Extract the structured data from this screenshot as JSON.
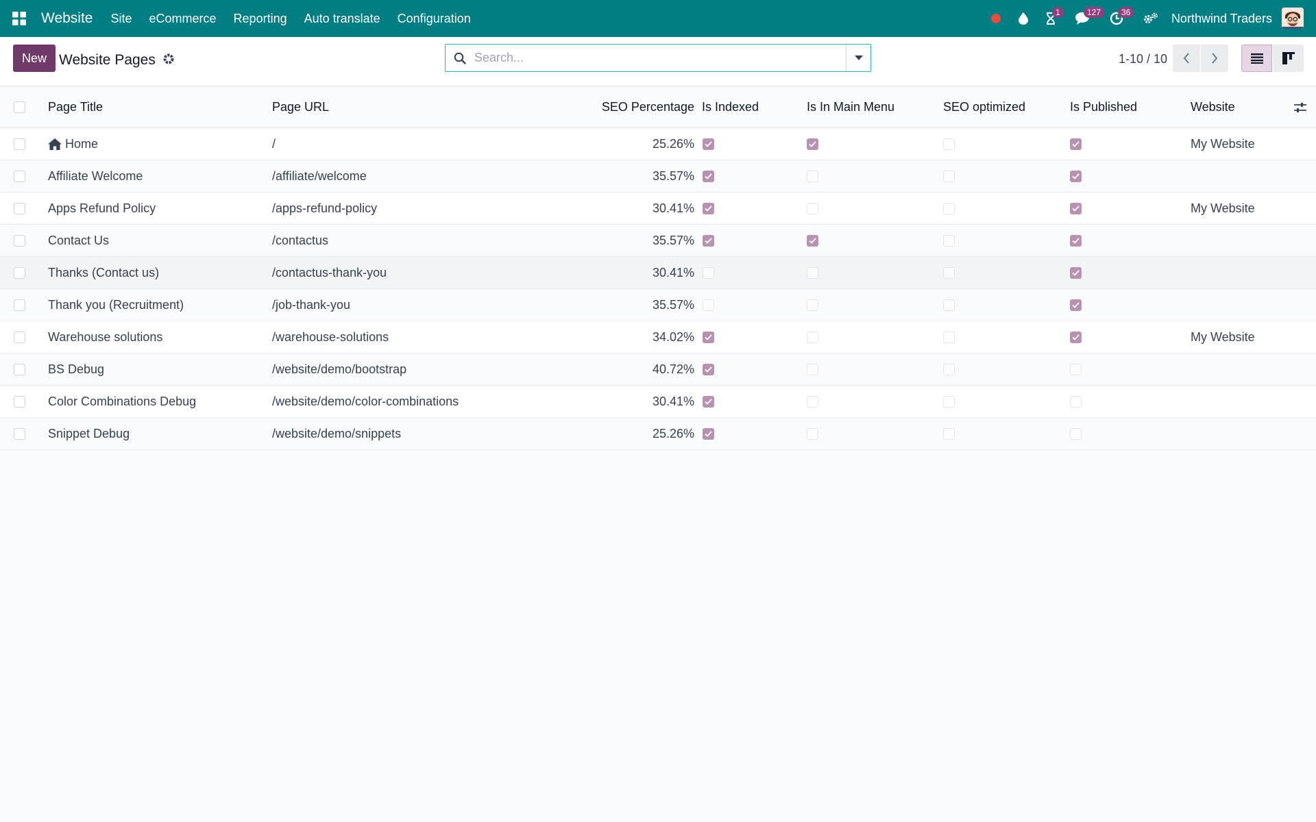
{
  "navbar": {
    "app_name": "Website",
    "menu": [
      "Site",
      "eCommerce",
      "Reporting",
      "Auto translate",
      "Configuration"
    ],
    "badges": {
      "activities": "1",
      "messages": "127",
      "timer": "36"
    },
    "company": "Northwind Traders",
    "colors": {
      "bar": "#017e84",
      "badge": "#8e3f7c",
      "record": "#e74c3c"
    }
  },
  "control": {
    "new_label": "New",
    "title": "Website Pages",
    "search_placeholder": "Search...",
    "pager": "1-10 / 10"
  },
  "table": {
    "headers": {
      "title": "Page Title",
      "url": "Page URL",
      "seo": "SEO Percentage",
      "indexed": "Is Indexed",
      "menu": "Is In Main Menu",
      "optimized": "SEO optimized",
      "published": "Is Published",
      "website": "Website"
    },
    "rows": [
      {
        "title": "Home",
        "url": "/",
        "seo": "25.26%",
        "indexed": true,
        "menu": true,
        "optimized": false,
        "published": true,
        "website": "My Website",
        "home": true
      },
      {
        "title": "Affiliate Welcome",
        "url": "/affiliate/welcome",
        "seo": "35.57%",
        "indexed": true,
        "menu": false,
        "optimized": false,
        "published": true,
        "website": ""
      },
      {
        "title": "Apps Refund Policy",
        "url": "/apps-refund-policy",
        "seo": "30.41%",
        "indexed": true,
        "menu": false,
        "optimized": false,
        "published": true,
        "website": "My Website"
      },
      {
        "title": "Contact Us",
        "url": "/contactus",
        "seo": "35.57%",
        "indexed": true,
        "menu": true,
        "optimized": false,
        "published": true,
        "website": ""
      },
      {
        "title": "Thanks (Contact us)",
        "url": "/contactus-thank-you",
        "seo": "30.41%",
        "indexed": false,
        "menu": false,
        "optimized": false,
        "published": true,
        "website": ""
      },
      {
        "title": "Thank you (Recruitment)",
        "url": "/job-thank-you",
        "seo": "35.57%",
        "indexed": false,
        "menu": false,
        "optimized": false,
        "published": true,
        "website": ""
      },
      {
        "title": "Warehouse solutions",
        "url": "/warehouse-solutions",
        "seo": "34.02%",
        "indexed": true,
        "menu": false,
        "optimized": false,
        "published": true,
        "website": "My Website"
      },
      {
        "title": "BS Debug",
        "url": "/website/demo/bootstrap",
        "seo": "40.72%",
        "indexed": true,
        "menu": false,
        "optimized": false,
        "published": false,
        "website": ""
      },
      {
        "title": "Color Combinations Debug",
        "url": "/website/demo/color-combinations",
        "seo": "30.41%",
        "indexed": true,
        "menu": false,
        "optimized": false,
        "published": false,
        "website": ""
      },
      {
        "title": "Snippet Debug",
        "url": "/website/demo/snippets",
        "seo": "25.26%",
        "indexed": true,
        "menu": false,
        "optimized": false,
        "published": false,
        "website": ""
      }
    ]
  }
}
